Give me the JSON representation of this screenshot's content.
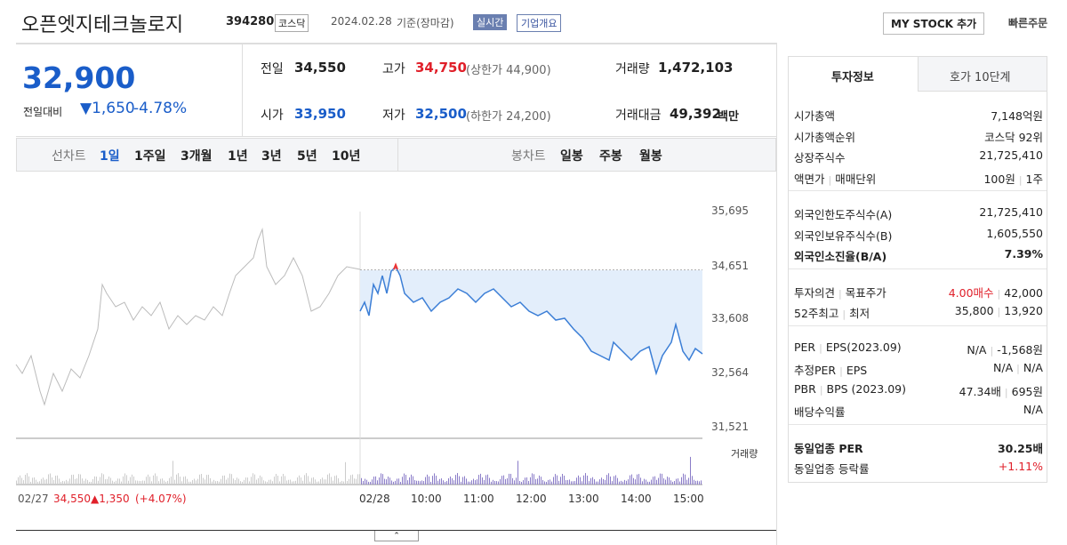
{
  "header": {
    "name": "오픈엣지테크놀로지",
    "code": "394280",
    "market": "코스닥",
    "date": "2024.02.28",
    "basis": "기준(장마감)",
    "realtime": "실시간",
    "company_info": "기업개요",
    "my_stock": "MY STOCK 추가",
    "quick_order": "빠른주문"
  },
  "quote": {
    "price": "32,900",
    "change_label": "전일대비",
    "change": "1,650",
    "change_pct": "-4.78%",
    "prev_label": "전일",
    "prev": "34,550",
    "high_label": "고가",
    "high": "34,750",
    "upper_limit": "(상한가 44,900)",
    "volume_label": "거래량",
    "volume": "1,472,103",
    "open_label": "시가",
    "open": "33,950",
    "low_label": "저가",
    "low": "32,500",
    "lower_limit": "(하한가 24,200)",
    "amount_label": "거래대금",
    "amount": "49,392",
    "amount_unit": "백만"
  },
  "tabs": {
    "line_label": "선차트",
    "periods": [
      "1일",
      "1주일",
      "3개월",
      "1년",
      "3년",
      "5년",
      "10년"
    ],
    "candle_label": "봉차트",
    "candles": [
      "일봉",
      "주봉",
      "월봉"
    ]
  },
  "chart": {
    "yticks": [
      "35,695",
      "34,651",
      "33,608",
      "32,564",
      "31,521"
    ],
    "volume_label": "거래량",
    "prev_date": "02/27",
    "prev_close": "34,550",
    "prev_change": "▲1,350",
    "prev_change_pct": "(+4.07%)",
    "xticks": [
      "02/28",
      "10:00",
      "11:00",
      "12:00",
      "13:00",
      "14:00",
      "15:00"
    ]
  },
  "side": {
    "tabs": [
      "투자정보",
      "호가 10단계"
    ],
    "groups": [
      [
        {
          "label": [
            "시가총액"
          ],
          "value": [
            "7,148억원"
          ]
        },
        {
          "label": [
            "시가총액순위"
          ],
          "value": [
            "코스닥 92위"
          ]
        },
        {
          "label": [
            "상장주식수"
          ],
          "value": [
            "21,725,410"
          ]
        },
        {
          "label": [
            "액면가",
            "매매단위"
          ],
          "value": [
            "100원",
            "1주"
          ]
        }
      ],
      [
        {
          "label": [
            "외국인한도주식수(A)"
          ],
          "value": [
            "21,725,410"
          ]
        },
        {
          "label": [
            "외국인보유주식수(B)"
          ],
          "value": [
            "1,605,550"
          ]
        },
        {
          "label": [
            "외국인소진율(B/A)"
          ],
          "value": [
            "7.39%"
          ]
        }
      ],
      [
        {
          "label": [
            "투자의견",
            "목표주가"
          ],
          "value": [
            "4.00매수",
            "42,000"
          ]
        },
        {
          "label": [
            "52주최고",
            "최저"
          ],
          "value": [
            "35,800",
            "13,920"
          ]
        }
      ],
      [
        {
          "label": [
            "PER",
            "EPS(2023.09)"
          ],
          "value": [
            "N/A",
            "-1,568원"
          ]
        },
        {
          "label": [
            "추정PER",
            "EPS"
          ],
          "value": [
            "N/A",
            "N/A"
          ]
        },
        {
          "label": [
            "PBR",
            "BPS (2023.09)"
          ],
          "value": [
            "47.34배",
            "695원"
          ]
        },
        {
          "label": [
            "배당수익률"
          ],
          "value": [
            "N/A"
          ]
        }
      ],
      [
        {
          "label": [
            "동일업종 PER"
          ],
          "value": [
            "30.25배"
          ]
        },
        {
          "label": [
            "동일업종 등락률"
          ],
          "value": [
            "+1.11%"
          ]
        }
      ]
    ]
  }
}
